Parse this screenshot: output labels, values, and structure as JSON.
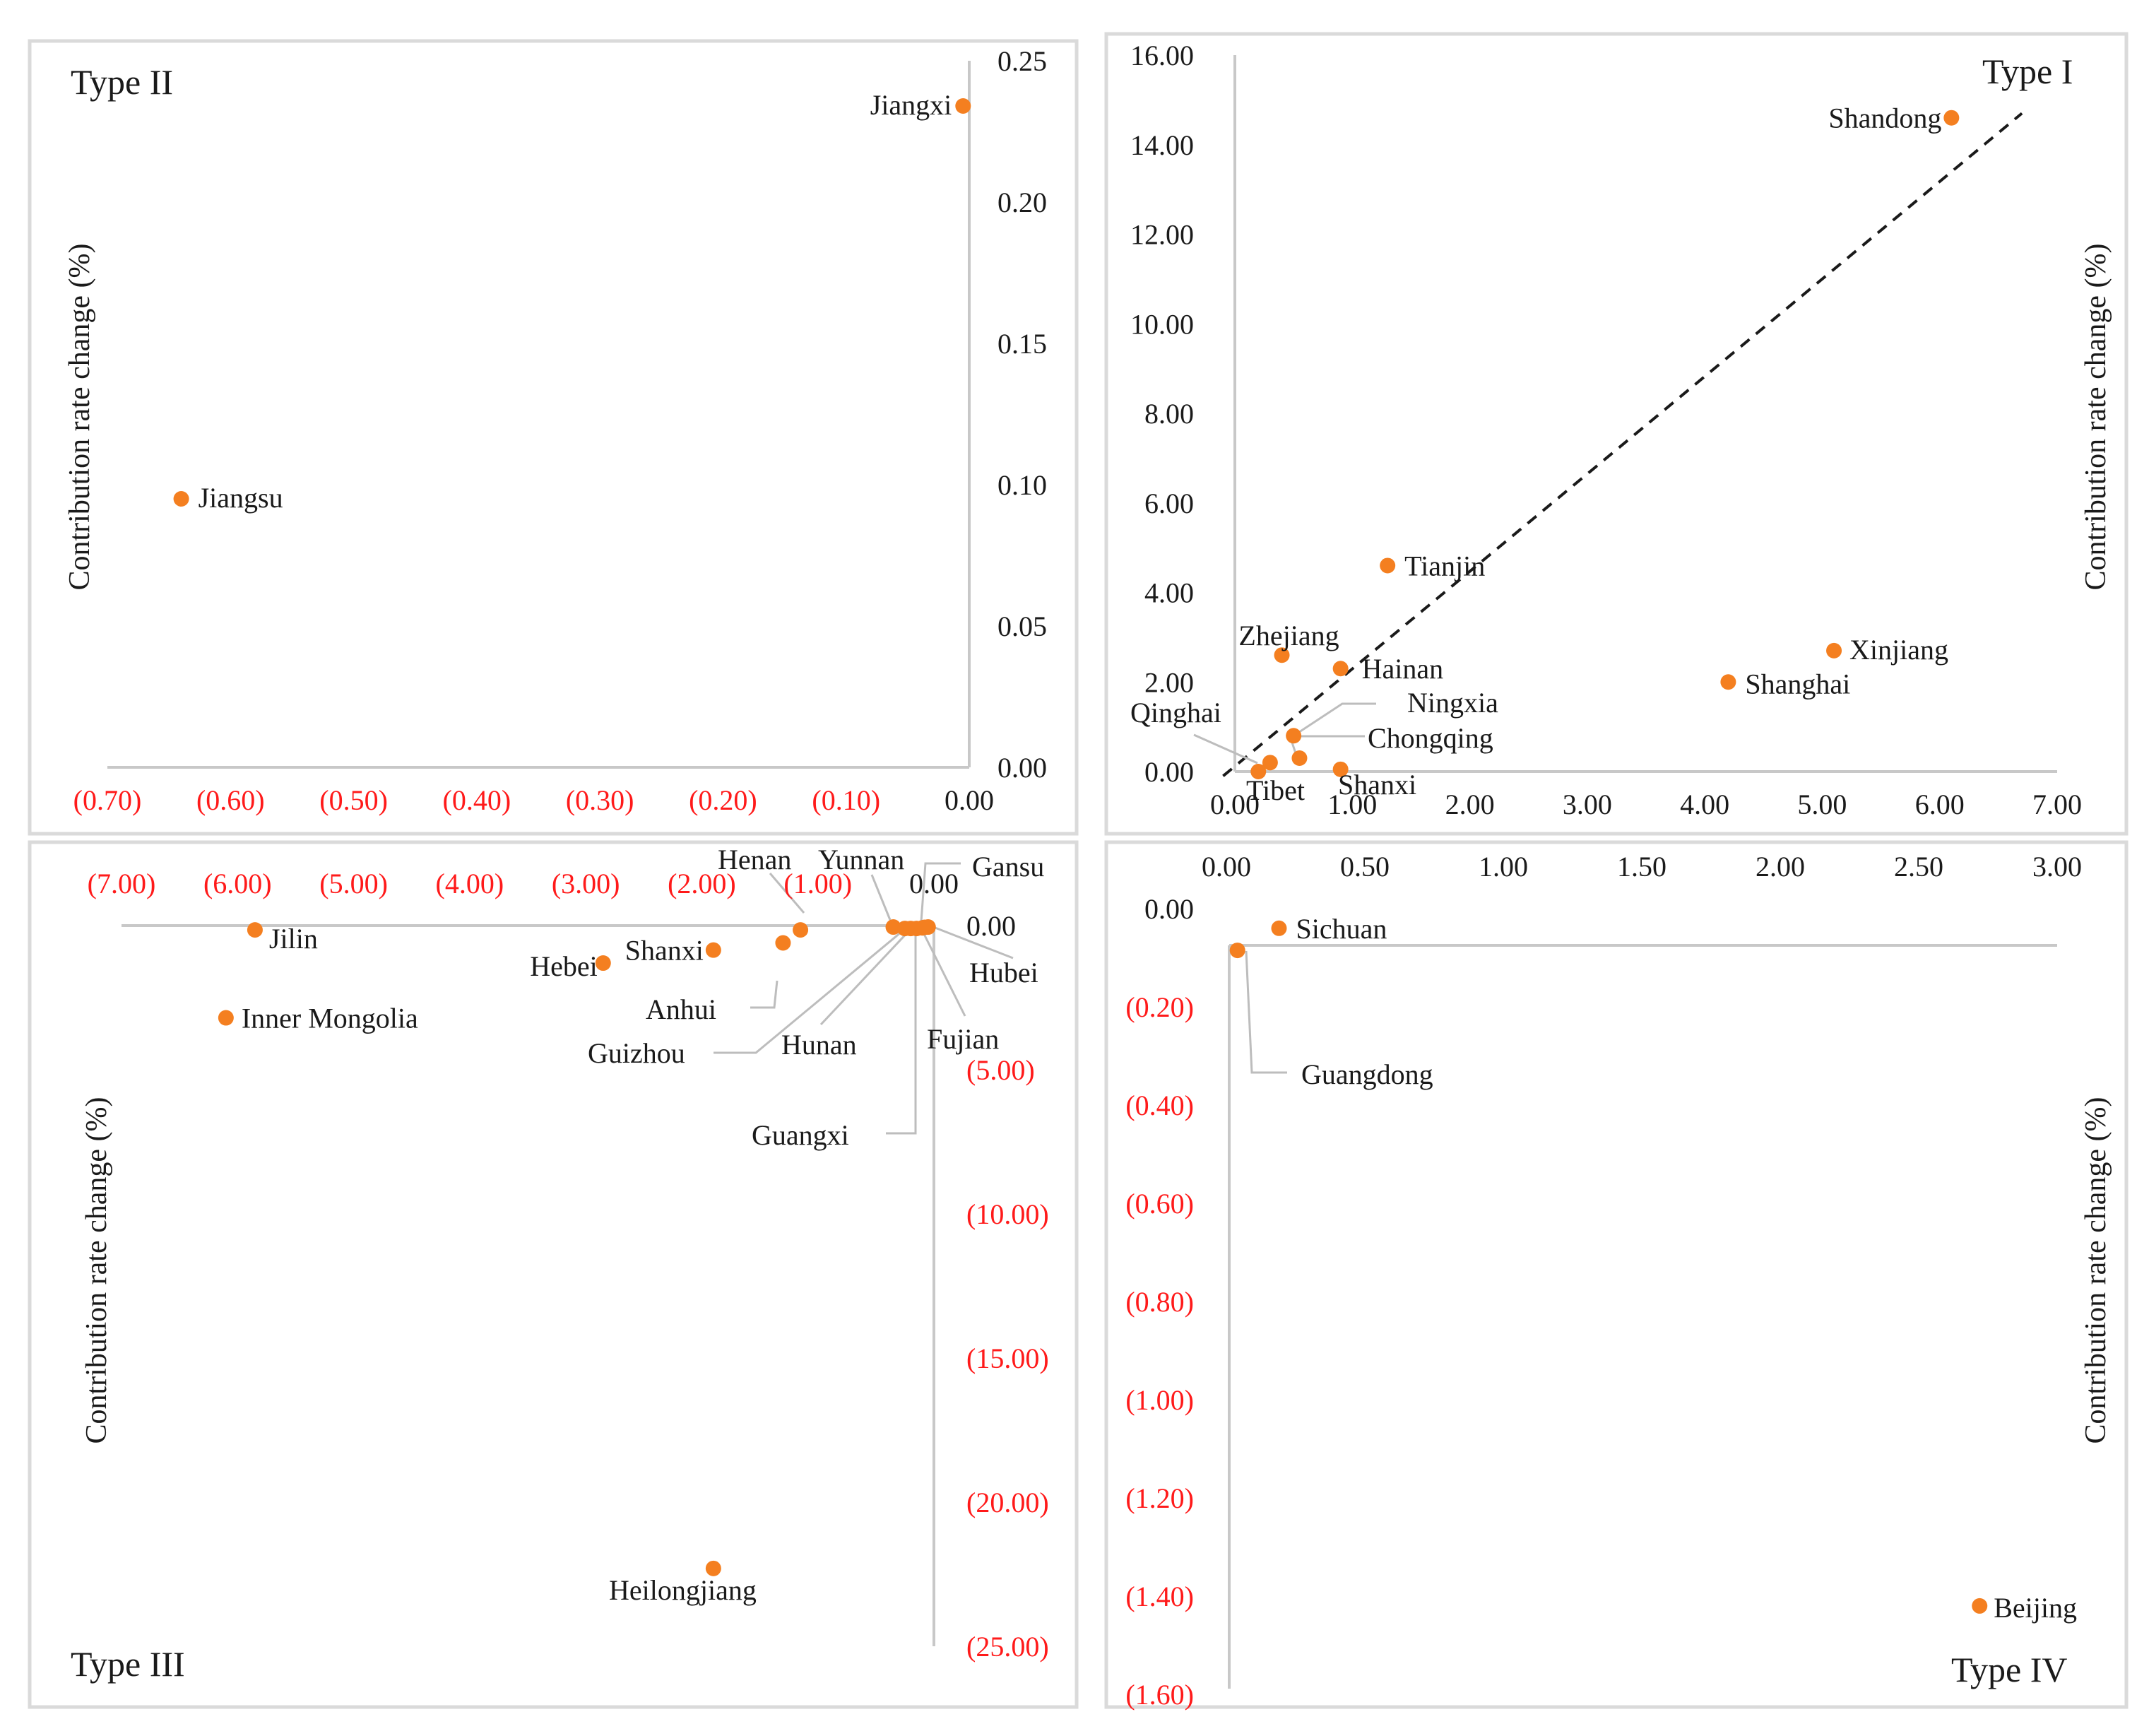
{
  "chart_data": [
    {
      "type": "scatter",
      "panel": "top-left",
      "title": "Type II",
      "xlabel": "",
      "ylabel": "Contribution rate change (%)",
      "xlim": [
        -0.7,
        0.0
      ],
      "ylim": [
        0.0,
        0.25
      ],
      "x_ticks": [
        "(0.70)",
        "(0.60)",
        "(0.50)",
        "(0.40)",
        "(0.30)",
        "(0.20)",
        "(0.10)",
        "0.00"
      ],
      "y_ticks": [
        "0.00",
        "0.05",
        "0.10",
        "0.15",
        "0.20",
        "0.25"
      ],
      "points": [
        {
          "name": "Jiangsu",
          "x": -0.64,
          "y": 0.095
        },
        {
          "name": "Jiangxi",
          "x": -0.005,
          "y": 0.234
        }
      ]
    },
    {
      "type": "scatter",
      "panel": "top-right",
      "title": "Type I",
      "xlabel": "",
      "ylabel": "Contribution rate change (%)",
      "xlim": [
        0.0,
        7.0
      ],
      "ylim": [
        0.0,
        16.0
      ],
      "x_ticks": [
        "0.00",
        "1.00",
        "2.00",
        "3.00",
        "4.00",
        "5.00",
        "6.00",
        "7.00"
      ],
      "y_ticks": [
        "0.00",
        "2.00",
        "4.00",
        "6.00",
        "8.00",
        "10.00",
        "12.00",
        "14.00",
        "16.00"
      ],
      "trendline": {
        "style": "dashed",
        "from": [
          -0.1,
          -0.1
        ],
        "to": [
          6.7,
          14.7
        ]
      },
      "points": [
        {
          "name": "Shandong",
          "x": 6.1,
          "y": 14.6
        },
        {
          "name": "Tianjin",
          "x": 1.3,
          "y": 4.6
        },
        {
          "name": "Xinjiang",
          "x": 5.1,
          "y": 2.7
        },
        {
          "name": "Shanghai",
          "x": 4.2,
          "y": 2.0
        },
        {
          "name": "Zhejiang",
          "x": 0.4,
          "y": 2.6
        },
        {
          "name": "Hainan",
          "x": 0.9,
          "y": 2.3
        },
        {
          "name": "Ningxia",
          "x": 0.5,
          "y": 0.8
        },
        {
          "name": "Chongqing",
          "x": 0.55,
          "y": 0.3
        },
        {
          "name": "Qinghai",
          "x": 0.3,
          "y": 0.2
        },
        {
          "name": "Tibet",
          "x": 0.2,
          "y": 0.0
        },
        {
          "name": "Shanxi",
          "x": 0.9,
          "y": 0.05
        }
      ]
    },
    {
      "type": "scatter",
      "panel": "bottom-left",
      "title": "Type III",
      "xlabel": "",
      "ylabel": "Contribution rate change (%)",
      "xlim": [
        -7.0,
        0.0
      ],
      "ylim": [
        -25.0,
        0.0
      ],
      "x_ticks": [
        "(7.00)",
        "(6.00)",
        "(5.00)",
        "(4.00)",
        "(3.00)",
        "(2.00)",
        "(1.00)",
        "0.00"
      ],
      "y_ticks": [
        "0.00",
        "(5.00)",
        "(10.00)",
        "(15.00)",
        "(20.00)",
        "(25.00)"
      ],
      "points": [
        {
          "name": "Jilin",
          "x": -5.85,
          "y": -0.15
        },
        {
          "name": "Inner Mongolia",
          "x": -6.1,
          "y": -3.2
        },
        {
          "name": "Hebei",
          "x": -2.85,
          "y": -1.3
        },
        {
          "name": "Shanxi",
          "x": -1.9,
          "y": -0.85
        },
        {
          "name": "Anhui",
          "x": -1.3,
          "y": -0.6
        },
        {
          "name": "Henan",
          "x": -1.15,
          "y": -0.15
        },
        {
          "name": "Heilongjiang",
          "x": -1.9,
          "y": -22.3
        },
        {
          "name": "Yunnan",
          "x": -0.35,
          "y": -0.05
        },
        {
          "name": "Gansu",
          "x": -0.05,
          "y": -0.05
        },
        {
          "name": "Guizhou",
          "x": -0.25,
          "y": -0.1
        },
        {
          "name": "Hunan",
          "x": -0.2,
          "y": -0.1
        },
        {
          "name": "Guangxi",
          "x": -0.15,
          "y": -0.1
        },
        {
          "name": "Fujian",
          "x": -0.1,
          "y": -0.08
        },
        {
          "name": "Hubei",
          "x": -0.08,
          "y": -0.06
        }
      ]
    },
    {
      "type": "scatter",
      "panel": "bottom-right",
      "title": "Type IV",
      "xlabel": "",
      "ylabel": "Contribution rate change (%)",
      "xlim": [
        0.0,
        3.0
      ],
      "ylim": [
        -1.6,
        0.0
      ],
      "x_ticks": [
        "0.00",
        "0.50",
        "1.00",
        "1.50",
        "2.00",
        "2.50",
        "3.00"
      ],
      "y_ticks": [
        "0.00",
        "(0.20)",
        "(0.40)",
        "(0.60)",
        "(0.80)",
        "(1.00)",
        "(1.20)",
        "(1.40)",
        "(1.60)"
      ],
      "points": [
        {
          "name": "Sichuan",
          "x": 0.19,
          "y": -0.04
        },
        {
          "name": "Guangdong",
          "x": 0.04,
          "y": -0.085
        },
        {
          "name": "Beijing",
          "x": 2.72,
          "y": -1.42
        }
      ]
    }
  ],
  "colors": {
    "point": "#f47f20",
    "axis": "#c8c8c8",
    "leader": "#bdbdbd",
    "frame": "#dadada",
    "red_tick": "#ff1a1a",
    "black_text": "#1a1a1a"
  }
}
